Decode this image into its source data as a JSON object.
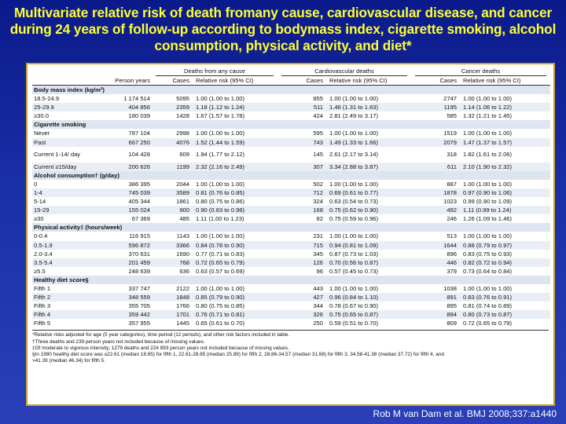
{
  "title": "Multivariate relative risk of death fromany cause, cardiovascular disease, and cancer during 24 years of follow-up according to bodymass index, cigarette smoking, alcohol consumption, physical activity, and diet*",
  "table": {
    "groups": [
      "Deaths from any cause",
      "Cardiovascular deaths",
      "Cancer deaths"
    ],
    "sub_headers": {
      "person_years": "Person years",
      "cases": "Cases",
      "rr": "Relative risk (95% CI)"
    },
    "rows": [
      {
        "type": "section",
        "label": "Body mass index (kg/m²)"
      },
      {
        "label": "18.5-24.9",
        "py": "1 174 514",
        "c1": "5095",
        "r1": "1.00 (1.00 to 1.00)",
        "c2": "855",
        "r2": "1.00 (1.00 to 1.00)",
        "c3": "2747",
        "r3": "1.00 (1.00 to 1.00)"
      },
      {
        "label": "25-29.9",
        "py": "404 856",
        "c1": "2359",
        "r1": "1.18 (1.12 to 1.24)",
        "c2": "511",
        "r2": "1.46 (1.31 to 1.63)",
        "c3": "1195",
        "r3": "1.14 (1.06 to 1.22)"
      },
      {
        "label": "≥30.0",
        "py": "180 039",
        "c1": "1428",
        "r1": "1.67 (1.57 to 1.78)",
        "c2": "424",
        "r2": "2.81 (2.49 to 3.17)",
        "c3": "585",
        "r3": "1.32 (1.21 to 1.45)"
      },
      {
        "type": "section",
        "label": "Cigarette smoking"
      },
      {
        "label": "Never",
        "py": "787 104",
        "c1": "2998",
        "r1": "1.00 (1.00 to 1.00)",
        "c2": "595",
        "r2": "1.00 (1.00 to 1.00)",
        "c3": "1519",
        "r3": "1.00 (1.00 to 1.00)"
      },
      {
        "label": "Past",
        "py": "667 250",
        "c1": "4076",
        "r1": "1.52 (1.44 to 1.59)",
        "c2": "743",
        "r2": "1.49 (1.33 to 1.66)",
        "c3": "2079",
        "r3": "1.47 (1.37 to 1.57)"
      },
      {
        "label": "Current 1-14/ day",
        "two": true,
        "py": "104 428",
        "c1": "609",
        "r1": "1.94 (1.77 to 2.12)",
        "c2": "145",
        "r2": "2.61 (2.17 to 3.14)",
        "c3": "318",
        "r3": "1.82 (1.61 to 2.06)"
      },
      {
        "label": "Current ≥15/day",
        "py": "200 626",
        "c1": "1199",
        "r1": "2.32 (2.16 to 2.49)",
        "c2": "307",
        "r2": "3.34 (2.88 to 3.87)",
        "c3": "611",
        "r3": "2.10 (1.90 to 2.32)"
      },
      {
        "type": "section",
        "label": "Alcohol consumption† (g/day)"
      },
      {
        "label": "0",
        "py": "386 395",
        "c1": "2044",
        "r1": "1.00 (1.00 to 1.00)",
        "c2": "502",
        "r2": "1.00 (1.00 to 1.00)",
        "c3": "887",
        "r3": "1.00 (1.00 to 1.00)"
      },
      {
        "label": "1-4",
        "py": "745 039",
        "c1": "3589",
        "r1": "0.81 (0.76 to 0.85)",
        "c2": "712",
        "r2": "0.69 (0.61 to 0.77)",
        "c3": "1878",
        "r3": "0.97 (0.90 to 1.06)"
      },
      {
        "label": "5-14",
        "py": "405 344",
        "c1": "1861",
        "r1": "0.80 (0.75 to 0.86)",
        "c2": "324",
        "r2": "0.63 (0.54 to 0.73)",
        "c3": "1023",
        "r3": "0.99 (0.90 to 1.09)"
      },
      {
        "label": "15-29",
        "py": "155 024",
        "c1": "900",
        "r1": "0.90 (0.83 to 0.98)",
        "c2": "168",
        "r2": "0.75 (0.62 to 0.90)",
        "c3": "492",
        "r3": "1.11 (0.99 to 1.24)"
      },
      {
        "label": "≥30",
        "py": "67 369",
        "c1": "485",
        "r1": "1.11 (1.00 to 1.23)",
        "c2": "82",
        "r2": "0.75 (0.59 to 0.96)",
        "c3": "246",
        "r3": "1.26 (1.09 to 1.46)"
      },
      {
        "type": "section",
        "label": "Physical activity‡ (hours/week)"
      },
      {
        "label": "0-0.4",
        "py": "116 915",
        "c1": "1143",
        "r1": "1.00 (1.00 to 1.00)",
        "c2": "231",
        "r2": "1.00 (1.00 to 1.00)",
        "c3": "513",
        "r3": "1.00 (1.00 to 1.00)"
      },
      {
        "label": "0.5-1.9",
        "py": "596 872",
        "c1": "3366",
        "r1": "0.84 (0.78 to 0.90)",
        "c2": "715",
        "r2": "0.94 (0.81 to 1.09)",
        "c3": "1644",
        "r3": "0.88 (0.79 to 0.97)"
      },
      {
        "label": "2.0-3.4",
        "py": "370 631",
        "c1": "1690",
        "r1": "0.77 (0.71 to 0.83)",
        "c2": "345",
        "r2": "0.87 (0.73 to 1.03)",
        "c3": "896",
        "r3": "0.83 (0.75 to 0.93)"
      },
      {
        "label": "3.5-5.4",
        "py": "201 459",
        "c1": "768",
        "r1": "0.72 (0.65 to 0.79)",
        "c2": "126",
        "r2": "0.70 (0.56 to 0.87)",
        "c3": "446",
        "r3": "0.82 (0.72 to 0.94)"
      },
      {
        "label": "≥5.5",
        "py": "248 639",
        "c1": "636",
        "r1": "0.63 (0.57 to 0.69)",
        "c2": "96",
        "r2": "0.57 (0.45 to 0.73)",
        "c3": "379",
        "r3": "0.73 (0.64 to 0.84)"
      },
      {
        "type": "section",
        "label": "Healthy diet score§"
      },
      {
        "label": "Fifth 1",
        "py": "337 747",
        "c1": "2122",
        "r1": "1.00 (1.00 to 1.00)",
        "c2": "443",
        "r2": "1.00 (1.00 to 1.00)",
        "c3": "1038",
        "r3": "1.00 (1.00 to 1.00)"
      },
      {
        "label": "Fifth 2",
        "py": "348 559",
        "c1": "1848",
        "r1": "0.85 (0.79 to 0.90)",
        "c2": "427",
        "r2": "0.96 (0.84 to 1.10)",
        "c3": "891",
        "r3": "0.83 (0.76 to 0.91)"
      },
      {
        "label": "Fifth 3",
        "py": "355 705",
        "c1": "1766",
        "r1": "0.80 (0.75 to 0.85)",
        "c2": "344",
        "r2": "0.78 (0.67 to 0.90)",
        "c3": "895",
        "r3": "0.81 (0.74 to 0.89)"
      },
      {
        "label": "Fifth 4",
        "py": "359 442",
        "c1": "1701",
        "r1": "0.76 (0.71 to 0.81)",
        "c2": "326",
        "r2": "0.75 (0.65 to 0.87)",
        "c3": "894",
        "r3": "0.80 (0.73 to 0.87)"
      },
      {
        "label": "Fifth 5",
        "py": "357 955",
        "c1": "1445",
        "r1": "0.65 (0.61 to 0.70)",
        "c2": "250",
        "r2": "0.59 (0.51 to 0.70)",
        "c3": "809",
        "r3": "0.72 (0.65 to 0.79)"
      }
    ],
    "footnotes": [
      "*Relative risks adjusted for age (5 year categories), time period (12 periods), and other risk factors included in table.",
      "†Three deaths and 239 person years not included because of missing values.",
      "‡Of moderate to vigorous intensity; 1279 deaths and 224 893 person years not included because of missing values.",
      "§In 1990 healthy diet score was ≤22.61 (median 18.65) for fifth 1, 22.61-28.85 (median 25.89) for fifth 2, 28.86-34.57 (median 31.68) for fifth 3, 34.58-41.38 (median 37.72) for fifth 4, and",
      ">41.39 (median 46.34) for fifth 5."
    ]
  },
  "credit": "Rob M van Dam et al. BMJ 2008;337:a1440"
}
